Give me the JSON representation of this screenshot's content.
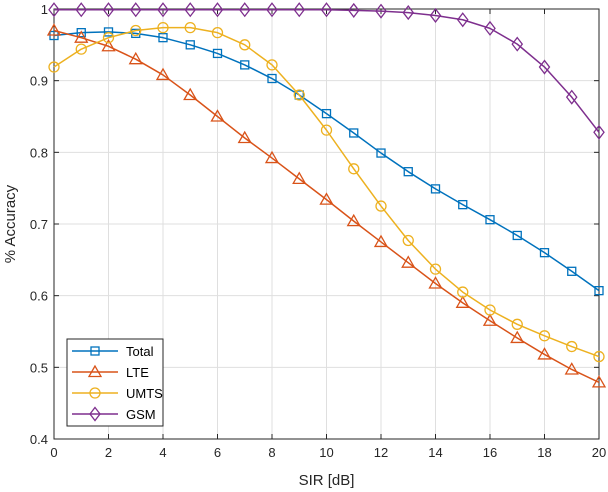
{
  "chart_data": {
    "type": "line",
    "title": "",
    "xlabel": "SIR [dB]",
    "ylabel": "% Accuracy",
    "xlim": [
      0,
      20
    ],
    "ylim": [
      0.4,
      1
    ],
    "xticks": [
      0,
      2,
      4,
      6,
      8,
      10,
      12,
      14,
      16,
      18,
      20
    ],
    "yticks": [
      0.4,
      0.5,
      0.6,
      0.7,
      0.8,
      0.9,
      1
    ],
    "xtick_labels": [
      "0",
      "2",
      "4",
      "6",
      "8",
      "10",
      "12",
      "14",
      "16",
      "18",
      "20"
    ],
    "ytick_labels": [
      "0.4",
      "0.5",
      "0.6",
      "0.7",
      "0.8",
      "0.9",
      "1"
    ],
    "grid": true,
    "legend_position": "bottom-left",
    "x": [
      0,
      1,
      2,
      3,
      4,
      5,
      6,
      7,
      8,
      9,
      10,
      11,
      12,
      13,
      14,
      15,
      16,
      17,
      18,
      19,
      20
    ],
    "series": [
      {
        "name": "Total",
        "color": "#0072BD",
        "marker": "square",
        "values": [
          0.963,
          0.967,
          0.968,
          0.966,
          0.96,
          0.95,
          0.938,
          0.922,
          0.903,
          0.88,
          0.854,
          0.827,
          0.799,
          0.773,
          0.749,
          0.727,
          0.706,
          0.684,
          0.66,
          0.634,
          0.607
        ]
      },
      {
        "name": "LTE",
        "color": "#D95319",
        "marker": "triangle",
        "values": [
          0.97,
          0.96,
          0.948,
          0.93,
          0.908,
          0.88,
          0.85,
          0.82,
          0.792,
          0.763,
          0.734,
          0.704,
          0.675,
          0.646,
          0.617,
          0.59,
          0.565,
          0.541,
          0.518,
          0.497,
          0.479
        ]
      },
      {
        "name": "UMTS",
        "color": "#EDB120",
        "marker": "circle",
        "values": [
          0.919,
          0.944,
          0.96,
          0.97,
          0.974,
          0.974,
          0.967,
          0.95,
          0.922,
          0.88,
          0.831,
          0.777,
          0.725,
          0.677,
          0.637,
          0.605,
          0.58,
          0.56,
          0.544,
          0.529,
          0.515
        ]
      },
      {
        "name": "GSM",
        "color": "#7E2F8E",
        "marker": "diamond",
        "values": [
          0.999,
          0.999,
          0.999,
          0.999,
          0.999,
          0.999,
          0.999,
          0.999,
          0.999,
          0.999,
          0.999,
          0.998,
          0.997,
          0.995,
          0.991,
          0.985,
          0.973,
          0.951,
          0.919,
          0.877,
          0.828
        ]
      }
    ]
  }
}
